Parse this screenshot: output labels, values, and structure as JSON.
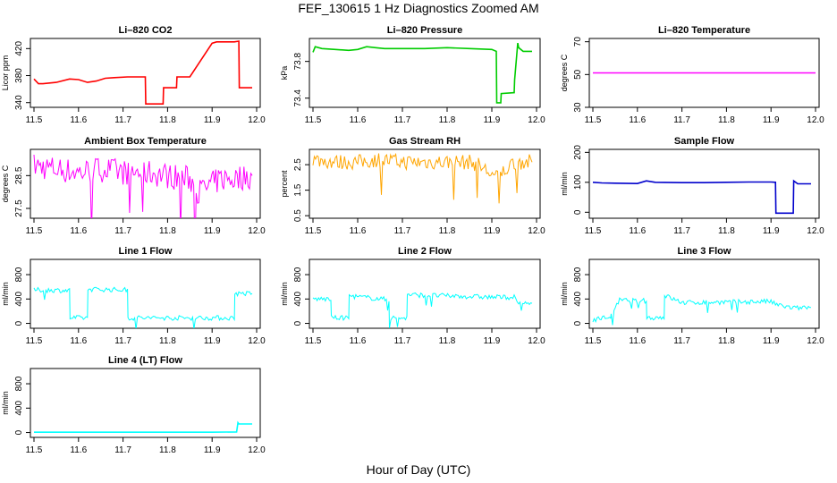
{
  "figure": {
    "title": "FEF_130615  1 Hz Diagnostics Zoomed AM",
    "xlabel": "Hour of Day (UTC)"
  },
  "chart_data": [
    {
      "type": "line",
      "title": "Li–820 CO2",
      "ylabel": "Licor ppm",
      "color": "#ff0000",
      "noise": 0,
      "xlim": [
        11.5,
        12.0
      ],
      "ylim": [
        333,
        435
      ],
      "yticks": [
        340,
        380,
        420
      ],
      "xticks": [
        11.5,
        11.6,
        11.7,
        11.8,
        11.9,
        12.0
      ],
      "series": [
        {
          "x": [
            11.5,
            11.51,
            11.52,
            11.55,
            11.58,
            11.6,
            11.62,
            11.64,
            11.66,
            11.68,
            11.71,
            11.75,
            11.751,
            11.79,
            11.791,
            11.82,
            11.821,
            11.85,
            11.9,
            11.91,
            11.95,
            11.96,
            11.961,
            11.99
          ],
          "y": [
            375,
            368,
            368,
            370,
            375,
            374,
            370,
            372,
            376,
            377,
            378,
            378,
            338,
            338,
            362,
            362,
            378,
            378,
            428,
            430,
            430,
            431,
            362,
            362
          ]
        }
      ]
    },
    {
      "type": "line",
      "title": "Li–820 Pressure",
      "ylabel": "kPa",
      "color": "#00cc00",
      "noise": 0,
      "xlim": [
        11.5,
        12.0
      ],
      "ylim": [
        73.3,
        74.05
      ],
      "yticks": [
        73.4,
        73.8
      ],
      "xticks": [
        11.5,
        11.6,
        11.7,
        11.8,
        11.9,
        12.0
      ],
      "series": [
        {
          "x": [
            11.5,
            11.505,
            11.52,
            11.55,
            11.58,
            11.6,
            11.62,
            11.64,
            11.66,
            11.7,
            11.75,
            11.8,
            11.85,
            11.9,
            11.91,
            11.911,
            11.92,
            11.921,
            11.95,
            11.951,
            11.958,
            11.96,
            11.97,
            11.99
          ],
          "y": [
            73.9,
            73.96,
            73.94,
            73.93,
            73.92,
            73.93,
            73.96,
            73.95,
            73.94,
            73.94,
            73.94,
            73.95,
            73.94,
            73.93,
            73.91,
            73.35,
            73.35,
            73.45,
            73.46,
            73.6,
            74.0,
            73.95,
            73.91,
            73.91
          ]
        }
      ]
    },
    {
      "type": "line",
      "title": "Li–820 Temperature",
      "ylabel": "degrees C",
      "color": "#ff00ff",
      "noise": 0,
      "xlim": [
        11.5,
        12.0
      ],
      "ylim": [
        30,
        72
      ],
      "yticks": [
        30,
        50,
        70
      ],
      "xticks": [
        11.5,
        11.6,
        11.7,
        11.8,
        11.9,
        12.0
      ],
      "series": [
        {
          "x": [
            11.5,
            12.0
          ],
          "y": [
            51,
            51
          ]
        }
      ]
    },
    {
      "type": "line",
      "title": "Ambient Box Temperature",
      "ylabel": "degrees C",
      "color": "#ff00ff",
      "noise": 0.4,
      "xlim": [
        11.5,
        12.0
      ],
      "ylim": [
        27.2,
        29.3
      ],
      "yticks": [
        27.5,
        28.5
      ],
      "xticks": [
        11.5,
        11.6,
        11.7,
        11.8,
        11.9,
        12.0
      ],
      "series": [
        {
          "x": [
            11.5,
            11.55,
            11.6,
            11.65,
            11.7,
            11.75,
            11.8,
            11.85,
            11.87,
            11.92,
            11.95,
            11.99
          ],
          "y": [
            28.8,
            28.7,
            28.6,
            28.7,
            28.6,
            28.6,
            28.5,
            28.4,
            28.0,
            28.4,
            28.4,
            28.5
          ]
        }
      ]
    },
    {
      "type": "line",
      "title": "Gas Stream RH",
      "ylabel": "percent",
      "color": "#ffa500",
      "noise": 0.3,
      "xlim": [
        11.5,
        12.0
      ],
      "ylim": [
        0.4,
        3.1
      ],
      "yticks": [
        0.5,
        1.5,
        2.5
      ],
      "xticks": [
        11.5,
        11.6,
        11.7,
        11.8,
        11.9,
        12.0
      ],
      "series": [
        {
          "x": [
            11.5,
            11.55,
            11.6,
            11.65,
            11.7,
            11.75,
            11.8,
            11.85,
            11.87,
            11.91,
            11.95,
            11.99
          ],
          "y": [
            2.7,
            2.6,
            2.6,
            2.7,
            2.6,
            2.6,
            2.6,
            2.6,
            2.5,
            2.0,
            2.6,
            2.6
          ]
        }
      ]
    },
    {
      "type": "line",
      "title": "Sample Flow",
      "ylabel": "ml/min",
      "color": "#0000cc",
      "noise": 0,
      "xlim": [
        11.5,
        12.0
      ],
      "ylim": [
        -20,
        210
      ],
      "yticks": [
        0,
        100,
        200
      ],
      "xticks": [
        11.5,
        11.6,
        11.7,
        11.8,
        11.9,
        12.0
      ],
      "series": [
        {
          "x": [
            11.5,
            11.52,
            11.55,
            11.6,
            11.62,
            11.64,
            11.7,
            11.75,
            11.8,
            11.85,
            11.9,
            11.91,
            11.911,
            11.95,
            11.951,
            11.96,
            11.99
          ],
          "y": [
            100,
            98,
            97,
            96,
            105,
            100,
            99,
            99,
            100,
            101,
            101,
            100,
            -3,
            -3,
            105,
            95,
            95
          ]
        }
      ]
    },
    {
      "type": "line",
      "title": "Line 1 Flow",
      "ylabel": "ml/min",
      "color": "#00ffff",
      "noise": 40,
      "xlim": [
        11.5,
        12.0
      ],
      "ylim": [
        -80,
        1050
      ],
      "yticks": [
        0,
        400,
        800
      ],
      "xticks": [
        11.5,
        11.6,
        11.7,
        11.8,
        11.9,
        12.0
      ],
      "series": [
        {
          "x": [
            11.5,
            11.58,
            11.581,
            11.62,
            11.621,
            11.71,
            11.711,
            11.95,
            11.951,
            11.99
          ],
          "y": [
            550,
            540,
            90,
            90,
            560,
            550,
            90,
            90,
            490,
            490
          ]
        }
      ]
    },
    {
      "type": "line",
      "title": "Line 2 Flow",
      "ylabel": "ml/min",
      "color": "#00ffff",
      "noise": 40,
      "xlim": [
        11.5,
        12.0
      ],
      "ylim": [
        -80,
        1050
      ],
      "yticks": [
        0,
        400,
        800
      ],
      "xticks": [
        11.5,
        11.6,
        11.7,
        11.8,
        11.9,
        12.0
      ],
      "series": [
        {
          "x": [
            11.5,
            11.54,
            11.541,
            11.58,
            11.581,
            11.67,
            11.671,
            11.71,
            11.711,
            11.9,
            11.95,
            11.96,
            11.99
          ],
          "y": [
            400,
            400,
            90,
            90,
            450,
            390,
            90,
            90,
            470,
            430,
            430,
            330,
            330
          ]
        }
      ]
    },
    {
      "type": "line",
      "title": "Line 3 Flow",
      "ylabel": "ml/min",
      "color": "#00ffff",
      "noise": 40,
      "xlim": [
        11.5,
        12.0
      ],
      "ylim": [
        -80,
        1050
      ],
      "yticks": [
        0,
        400,
        800
      ],
      "xticks": [
        11.5,
        11.6,
        11.7,
        11.8,
        11.9,
        12.0
      ],
      "series": [
        {
          "x": [
            11.5,
            11.54,
            11.541,
            11.56,
            11.62,
            11.621,
            11.66,
            11.661,
            11.7,
            11.9,
            11.91,
            11.95,
            11.99
          ],
          "y": [
            60,
            110,
            120,
            380,
            370,
            90,
            100,
            460,
            340,
            360,
            310,
            250,
            260
          ]
        }
      ]
    },
    {
      "type": "line",
      "title": "Line 4 (LT) Flow",
      "ylabel": "ml/min",
      "color": "#00ffff",
      "noise": 0,
      "xlim": [
        11.5,
        12.0
      ],
      "ylim": [
        -80,
        1050
      ],
      "yticks": [
        0,
        400,
        800
      ],
      "xticks": [
        11.5,
        11.6,
        11.7,
        11.8,
        11.9,
        12.0
      ],
      "series": [
        {
          "x": [
            11.5,
            11.6,
            11.7,
            11.8,
            11.9,
            11.955,
            11.958,
            11.96,
            11.99
          ],
          "y": [
            5,
            5,
            5,
            5,
            5,
            10,
            160,
            140,
            140
          ]
        }
      ]
    }
  ]
}
